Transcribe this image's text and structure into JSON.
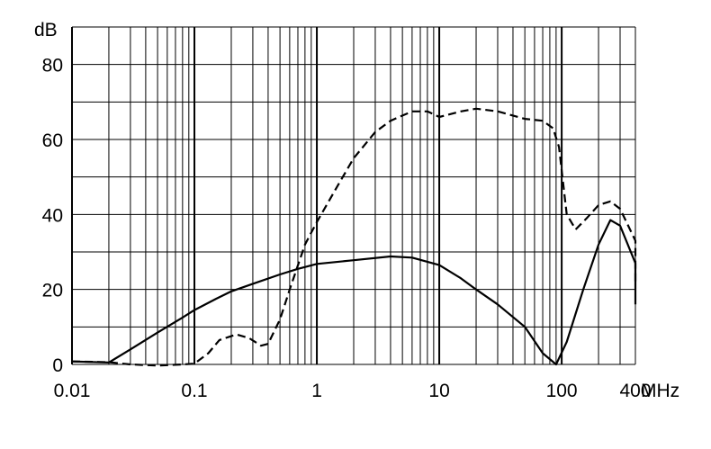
{
  "chart_data": {
    "type": "line",
    "x_scale": "log",
    "xlim": [
      0.01,
      400
    ],
    "ylim": [
      0,
      90
    ],
    "grid": true,
    "y_unit": "dB",
    "x_unit": "MHz",
    "x_tick_labels": [
      {
        "value": 0.01,
        "label": "0.01"
      },
      {
        "value": 0.1,
        "label": "0.1"
      },
      {
        "value": 1,
        "label": "1"
      },
      {
        "value": 10,
        "label": "10"
      },
      {
        "value": 100,
        "label": "100"
      },
      {
        "value": 400,
        "label": "400"
      }
    ],
    "y_tick_labels": [
      {
        "value": 0,
        "label": "0"
      },
      {
        "value": 20,
        "label": "20"
      },
      {
        "value": 40,
        "label": "40"
      },
      {
        "value": 60,
        "label": "60"
      },
      {
        "value": 80,
        "label": "80"
      }
    ],
    "series": [
      {
        "style": "solid",
        "points": [
          [
            0.01,
            0.8
          ],
          [
            0.02,
            0.5
          ],
          [
            0.03,
            4
          ],
          [
            0.05,
            8.5
          ],
          [
            0.08,
            12.5
          ],
          [
            0.1,
            14.5
          ],
          [
            0.15,
            17.5
          ],
          [
            0.2,
            19.5
          ],
          [
            0.3,
            21.5
          ],
          [
            0.5,
            24
          ],
          [
            0.7,
            25.5
          ],
          [
            1,
            26.8
          ],
          [
            2,
            27.8
          ],
          [
            4,
            28.8
          ],
          [
            6,
            28.5
          ],
          [
            10,
            26.5
          ],
          [
            15,
            23
          ],
          [
            20,
            20
          ],
          [
            30,
            16
          ],
          [
            50,
            10
          ],
          [
            70,
            3
          ],
          [
            90,
            0
          ],
          [
            110,
            6
          ],
          [
            150,
            20
          ],
          [
            200,
            32
          ],
          [
            250,
            38.5
          ],
          [
            300,
            37
          ],
          [
            400,
            27
          ],
          [
            500,
            16
          ]
        ]
      },
      {
        "style": "dashed",
        "points": [
          [
            0.01,
            0.8
          ],
          [
            0.02,
            0.6
          ],
          [
            0.03,
            0
          ],
          [
            0.05,
            -0.3
          ],
          [
            0.08,
            0
          ],
          [
            0.1,
            0.2
          ],
          [
            0.13,
            3
          ],
          [
            0.16,
            6.5
          ],
          [
            0.22,
            8
          ],
          [
            0.28,
            7
          ],
          [
            0.35,
            5
          ],
          [
            0.4,
            5.5
          ],
          [
            0.5,
            12
          ],
          [
            0.6,
            20
          ],
          [
            0.8,
            32
          ],
          [
            1,
            38
          ],
          [
            1.5,
            48
          ],
          [
            2,
            55
          ],
          [
            3,
            62
          ],
          [
            4,
            65
          ],
          [
            6,
            67.5
          ],
          [
            8,
            67.5
          ],
          [
            10,
            66
          ],
          [
            15,
            67.5
          ],
          [
            20,
            68.2
          ],
          [
            30,
            67.5
          ],
          [
            50,
            65.5
          ],
          [
            70,
            65
          ],
          [
            85,
            63
          ],
          [
            95,
            58
          ],
          [
            110,
            40
          ],
          [
            130,
            36
          ],
          [
            160,
            39
          ],
          [
            200,
            42.5
          ],
          [
            250,
            43.5
          ],
          [
            300,
            41.5
          ],
          [
            400,
            33
          ],
          [
            500,
            22
          ]
        ]
      }
    ]
  }
}
